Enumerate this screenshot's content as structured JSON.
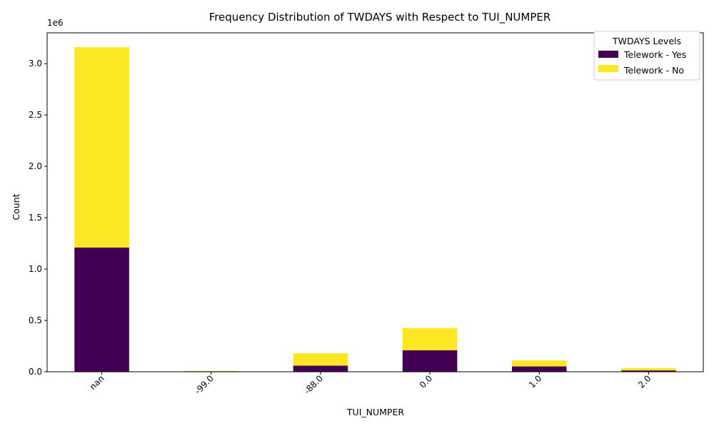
{
  "chart_data": {
    "type": "bar",
    "stacked": true,
    "title": "Frequency Distribution of TWDAYS with Respect to TUI_NUMPER",
    "xlabel": "TUI_NUMPER",
    "ylabel": "Count",
    "y_offset_label": "1e6",
    "categories": [
      "nan",
      "-99.0",
      "-88.0",
      "0.0",
      "1.0",
      "2.0"
    ],
    "series": [
      {
        "name": "Telework - Yes",
        "color": "#440154",
        "values": [
          1210000,
          5000,
          60000,
          210000,
          52000,
          13000
        ]
      },
      {
        "name": "Telework - No",
        "color": "#fde725",
        "values": [
          1950000,
          3000,
          120000,
          215000,
          58000,
          22000
        ]
      }
    ],
    "ylim": [
      0,
      3300000
    ],
    "yticks": [
      0,
      500000,
      1000000,
      1500000,
      2000000,
      2500000,
      3000000
    ],
    "ytick_labels": [
      "0.0",
      "0.5",
      "1.0",
      "1.5",
      "2.0",
      "2.5",
      "3.0"
    ],
    "x_tick_rotation": 45,
    "legend": {
      "title": "TWDAYS Levels",
      "position": "top-right"
    },
    "grid": false
  }
}
